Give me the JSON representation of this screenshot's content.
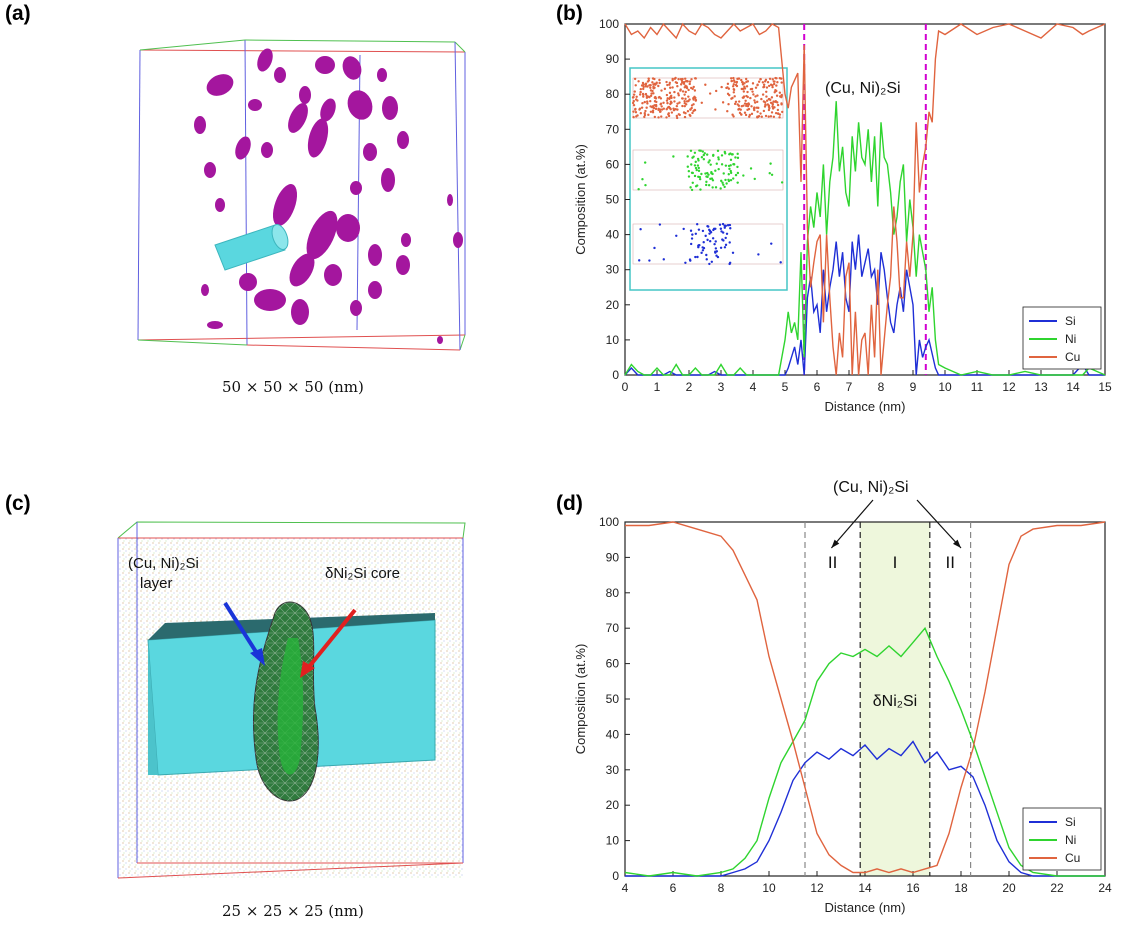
{
  "panels": {
    "a": {
      "letter": "(a)",
      "caption": "50 × 50 × 50 (nm)"
    },
    "b": {
      "letter": "(b)",
      "annotation": "(Cu, Ni)₂Si"
    },
    "c": {
      "letter": "(c)",
      "caption": "25 × 25 × 25 (nm)",
      "label_layer_1": "(Cu, Ni)₂Si",
      "label_layer_2": "layer",
      "label_core": "δNi₂Si core"
    },
    "d": {
      "letter": "(d)",
      "annotation_top": "(Cu, Ni)₂Si",
      "region_II_left": "II",
      "region_I": "I",
      "region_II_right": "II",
      "phase_label": "δNi₂Si"
    }
  },
  "colors": {
    "Si": "#1f2fd6",
    "Ni": "#2fd42f",
    "Cu": "#e0643f",
    "magenta": "#d100d1",
    "cyan": "#5ad7df",
    "precipitate": "#a4169e"
  },
  "chart_data": [
    {
      "id": "b",
      "type": "line",
      "xlabel": "Distance (nm)",
      "ylabel": "Composition (at.%)",
      "xlim": [
        0,
        15
      ],
      "ylim": [
        0,
        100
      ],
      "xticks": [
        0,
        1,
        2,
        3,
        4,
        5,
        6,
        7,
        8,
        9,
        10,
        11,
        12,
        13,
        14,
        15
      ],
      "yticks": [
        0,
        10,
        20,
        30,
        40,
        50,
        60,
        70,
        80,
        90,
        100
      ],
      "legend_position": "bottom-right",
      "vlines": [
        5.6,
        9.4
      ],
      "series": [
        {
          "name": "Si",
          "color": "#1f2fd6",
          "x": [
            0,
            0.2,
            0.4,
            0.6,
            0.8,
            1,
            1.2,
            1.4,
            1.6,
            1.8,
            2,
            2.2,
            2.4,
            2.6,
            2.8,
            3,
            3.2,
            3.4,
            3.6,
            3.8,
            4,
            4.2,
            4.4,
            4.6,
            4.8,
            5,
            5.1,
            5.2,
            5.3,
            5.4,
            5.5,
            5.6,
            5.7,
            5.8,
            5.9,
            6,
            6.1,
            6.2,
            6.3,
            6.4,
            6.5,
            6.6,
            6.7,
            6.8,
            6.9,
            7,
            7.1,
            7.2,
            7.3,
            7.4,
            7.5,
            7.6,
            7.7,
            7.8,
            7.9,
            8,
            8.1,
            8.2,
            8.3,
            8.4,
            8.5,
            8.6,
            8.7,
            8.8,
            8.9,
            9,
            9.1,
            9.2,
            9.3,
            9.4,
            9.5,
            9.6,
            9.7,
            9.8,
            10,
            10.5,
            11,
            11.5,
            12,
            12.5,
            13,
            13.5,
            14,
            14.3,
            14.5,
            15
          ],
          "y": [
            0,
            2,
            0,
            0,
            0,
            0,
            0,
            1,
            0,
            0,
            0,
            0,
            0,
            0,
            1,
            0,
            0,
            0,
            0,
            0,
            0,
            0,
            0,
            0,
            0,
            0,
            2,
            5,
            8,
            3,
            10,
            0,
            22,
            28,
            18,
            20,
            12,
            30,
            18,
            25,
            30,
            38,
            28,
            35,
            22,
            18,
            38,
            30,
            40,
            28,
            32,
            36,
            28,
            30,
            20,
            35,
            30,
            22,
            15,
            12,
            20,
            25,
            18,
            30,
            25,
            20,
            0,
            10,
            5,
            8,
            10,
            6,
            2,
            0,
            0,
            0,
            0,
            0,
            0,
            0,
            0,
            0,
            0,
            3,
            0,
            0
          ]
        },
        {
          "name": "Ni",
          "color": "#2fd42f",
          "x": [
            0,
            0.2,
            0.4,
            0.6,
            0.8,
            1,
            1.2,
            1.4,
            1.6,
            1.8,
            2,
            2.2,
            2.4,
            2.6,
            2.8,
            3,
            3.2,
            3.4,
            3.6,
            3.8,
            4,
            4.2,
            4.4,
            4.6,
            4.8,
            5,
            5.1,
            5.2,
            5.3,
            5.4,
            5.5,
            5.6,
            5.7,
            5.8,
            5.9,
            6,
            6.1,
            6.2,
            6.3,
            6.4,
            6.5,
            6.6,
            6.7,
            6.8,
            6.9,
            7,
            7.1,
            7.2,
            7.3,
            7.4,
            7.5,
            7.6,
            7.7,
            7.8,
            7.9,
            8,
            8.1,
            8.2,
            8.3,
            8.4,
            8.5,
            8.6,
            8.7,
            8.8,
            8.9,
            9,
            9.1,
            9.2,
            9.3,
            9.4,
            9.5,
            9.6,
            9.7,
            9.8,
            10,
            10.5,
            11,
            11.5,
            12,
            12.5,
            13,
            13.5,
            14,
            14.3,
            14.5,
            15
          ],
          "y": [
            0,
            3,
            1,
            0,
            0,
            2,
            0,
            0,
            3,
            0,
            0,
            2,
            0,
            0,
            0,
            3,
            0,
            0,
            2,
            0,
            0,
            0,
            0,
            0,
            0,
            10,
            18,
            12,
            15,
            10,
            35,
            5,
            38,
            48,
            42,
            52,
            45,
            60,
            40,
            55,
            62,
            78,
            58,
            65,
            52,
            48,
            68,
            58,
            72,
            62,
            60,
            70,
            55,
            68,
            48,
            72,
            62,
            60,
            52,
            40,
            45,
            55,
            60,
            38,
            50,
            42,
            28,
            40,
            35,
            30,
            18,
            25,
            10,
            3,
            2,
            0,
            1,
            0,
            0,
            1,
            0,
            0,
            0,
            0,
            2,
            0
          ]
        },
        {
          "name": "Cu",
          "color": "#e0643f",
          "x": [
            0,
            0.2,
            0.4,
            0.6,
            0.8,
            1,
            1.2,
            1.4,
            1.6,
            1.8,
            2,
            2.2,
            2.4,
            2.6,
            2.8,
            3,
            3.2,
            3.4,
            3.6,
            3.8,
            4,
            4.2,
            4.4,
            4.6,
            4.8,
            5,
            5.1,
            5.2,
            5.3,
            5.4,
            5.5,
            5.6,
            5.7,
            5.8,
            5.9,
            6,
            6.1,
            6.2,
            6.3,
            6.4,
            6.5,
            6.6,
            6.7,
            6.8,
            6.9,
            7,
            7.1,
            7.2,
            7.3,
            7.4,
            7.5,
            7.6,
            7.7,
            7.8,
            7.9,
            8,
            8.1,
            8.2,
            8.3,
            8.4,
            8.5,
            8.6,
            8.7,
            8.8,
            8.9,
            9,
            9.1,
            9.2,
            9.3,
            9.4,
            9.5,
            9.6,
            9.7,
            9.8,
            10,
            10.5,
            11,
            11.5,
            12,
            12.5,
            13,
            13.5,
            14,
            14.3,
            14.5,
            15
          ],
          "y": [
            100,
            97,
            98,
            96,
            99,
            97,
            100,
            98,
            96,
            100,
            98,
            97,
            100,
            99,
            97,
            96,
            98,
            100,
            98,
            99,
            100,
            97,
            98,
            100,
            99,
            80,
            76,
            82,
            84,
            86,
            55,
            94,
            42,
            25,
            32,
            38,
            40,
            15,
            40,
            22,
            8,
            0,
            12,
            5,
            28,
            32,
            0,
            18,
            0,
            10,
            12,
            0,
            20,
            5,
            30,
            0,
            10,
            20,
            28,
            48,
            38,
            22,
            22,
            38,
            28,
            40,
            72,
            52,
            60,
            65,
            75,
            72,
            90,
            98,
            97,
            100,
            97,
            99,
            100,
            98,
            96,
            100,
            99,
            97,
            98,
            100
          ]
        }
      ]
    },
    {
      "id": "d",
      "type": "line",
      "xlabel": "Distance (nm)",
      "ylabel": "Composition (at.%)",
      "xlim": [
        4,
        24
      ],
      "ylim": [
        0,
        100
      ],
      "xticks": [
        4,
        6,
        8,
        10,
        12,
        14,
        16,
        18,
        20,
        22,
        24
      ],
      "yticks": [
        0,
        10,
        20,
        30,
        40,
        50,
        60,
        70,
        80,
        90,
        100
      ],
      "legend_position": "bottom-right",
      "vlines": [
        11.5,
        13.8,
        16.7,
        18.4
      ],
      "shaded_region": [
        13.8,
        16.7
      ],
      "series": [
        {
          "name": "Si",
          "color": "#1f2fd6",
          "x": [
            4,
            5,
            6,
            7,
            8,
            8.5,
            9,
            9.5,
            10,
            10.5,
            11,
            11.5,
            12,
            12.5,
            13,
            13.5,
            14,
            14.5,
            15,
            15.5,
            16,
            16.5,
            17,
            17.5,
            18,
            18.5,
            19,
            19.5,
            20,
            20.5,
            21,
            22,
            23,
            24
          ],
          "y": [
            0,
            0,
            0,
            0,
            0,
            1,
            2,
            4,
            10,
            18,
            27,
            32,
            35,
            33,
            36,
            34,
            37,
            33,
            36,
            34,
            38,
            32,
            35,
            30,
            31,
            28,
            20,
            10,
            4,
            1,
            0,
            0,
            0,
            0
          ]
        },
        {
          "name": "Ni",
          "color": "#2fd42f",
          "x": [
            4,
            5,
            6,
            7,
            8,
            8.5,
            9,
            9.5,
            10,
            10.5,
            11,
            11.5,
            12,
            12.5,
            13,
            13.5,
            14,
            14.5,
            15,
            15.5,
            16,
            16.5,
            17,
            17.5,
            18,
            18.5,
            19,
            19.5,
            20,
            20.5,
            21,
            22,
            23,
            24
          ],
          "y": [
            1,
            0,
            1,
            0,
            1,
            2,
            5,
            10,
            22,
            32,
            38,
            44,
            55,
            60,
            63,
            62,
            64,
            62,
            65,
            62,
            66,
            70,
            62,
            55,
            47,
            38,
            28,
            18,
            8,
            3,
            1,
            0,
            0,
            0
          ]
        },
        {
          "name": "Cu",
          "color": "#e0643f",
          "x": [
            4,
            5,
            6,
            7,
            8,
            8.5,
            9,
            9.5,
            10,
            10.5,
            11,
            11.5,
            12,
            12.5,
            13,
            13.5,
            14,
            14.5,
            15,
            15.5,
            16,
            16.5,
            17,
            17.5,
            18,
            18.5,
            19,
            19.5,
            20,
            20.5,
            21,
            22,
            23,
            24
          ],
          "y": [
            99,
            99,
            100,
            98,
            96,
            92,
            85,
            78,
            62,
            50,
            38,
            25,
            12,
            6,
            3,
            1,
            1,
            2,
            1,
            2,
            1,
            2,
            3,
            12,
            25,
            36,
            52,
            70,
            88,
            96,
            98,
            99,
            99,
            100
          ]
        }
      ]
    }
  ]
}
